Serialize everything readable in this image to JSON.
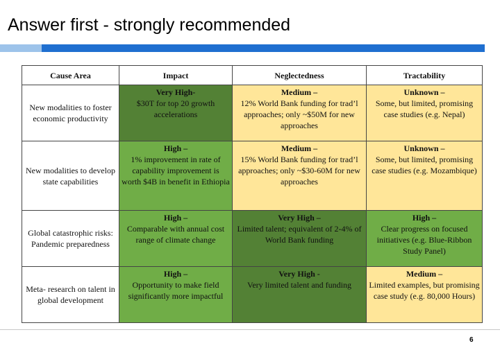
{
  "title": "Answer first - strongly recommended",
  "table": {
    "headers": [
      "Cause Area",
      "Impact",
      "Neglectedness",
      "Tractability"
    ],
    "rows": [
      {
        "cause": "New modalities to foster economic productivity",
        "cells": [
          {
            "head": "Very High-",
            "body": "$30T for top 20 growth accelerations",
            "level": "very-high"
          },
          {
            "head": "Medium –",
            "body": "12% World Bank funding for trad’l approaches; only ~$50M for new approaches",
            "level": "medium"
          },
          {
            "head": "Unknown –",
            "body": "Some, but limited, promising case studies (e.g. Nepal)",
            "level": "medium"
          }
        ]
      },
      {
        "cause": "New modalities to develop state capabilities",
        "cells": [
          {
            "head": "High –",
            "body": "1% improvement in rate of capability improvement is worth $4B in benefit in Ethiopia",
            "level": "high"
          },
          {
            "head": "Medium –",
            "body": "15% World Bank funding for trad’l approaches; only ~$30-60M for new approaches",
            "level": "medium"
          },
          {
            "head": "Unknown –",
            "body": "Some, but limited, promising case studies (e.g. Mozambique)",
            "level": "medium"
          }
        ]
      },
      {
        "cause": "Global catastrophic risks: Pandemic preparedness",
        "cells": [
          {
            "head": "High –",
            "body": "Comparable with annual cost range of climate change",
            "level": "high"
          },
          {
            "head": "Very High –",
            "body": "Limited talent; equivalent of 2-4% of World Bank funding",
            "level": "very-high"
          },
          {
            "head": "High –",
            "body": "Clear progress on focused initiatives (e.g. Blue-Ribbon Study Panel)",
            "level": "high"
          }
        ]
      },
      {
        "cause": "Meta- research on talent in global development",
        "cells": [
          {
            "head": "High –",
            "body": "Opportunity to make field significantly more impactful",
            "level": "high"
          },
          {
            "head": "Very High -",
            "body": "Very limited talent and funding",
            "level": "very-high"
          },
          {
            "head": "Medium –",
            "body": "Limited examples, but promising case study (e.g. 80,000 Hours)",
            "level": "medium"
          }
        ]
      }
    ]
  },
  "colors": {
    "very_high": "#538135",
    "high": "#70ad47",
    "medium": "#ffe699",
    "band": "#1f6fd0"
  },
  "page_number": "6"
}
